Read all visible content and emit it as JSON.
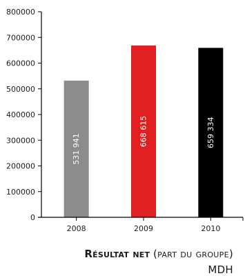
{
  "chart_data": {
    "type": "bar",
    "categories": [
      "2008",
      "2009",
      "2010"
    ],
    "values": [
      531941,
      668615,
      659334
    ],
    "value_labels": [
      "531 941",
      "668 615",
      "659 334"
    ],
    "bar_colors": [
      "#8c8c8c",
      "#e02020",
      "#000000"
    ],
    "ylim": [
      0,
      800000
    ],
    "yticks": [
      "0",
      "100000",
      "200000",
      "300000",
      "400000",
      "500000",
      "600000",
      "700000",
      "800000"
    ],
    "grid": false,
    "legend": "none"
  },
  "caption": {
    "bold": "Résultat net",
    "light": "(part du groupe)",
    "unit": "MDH"
  }
}
